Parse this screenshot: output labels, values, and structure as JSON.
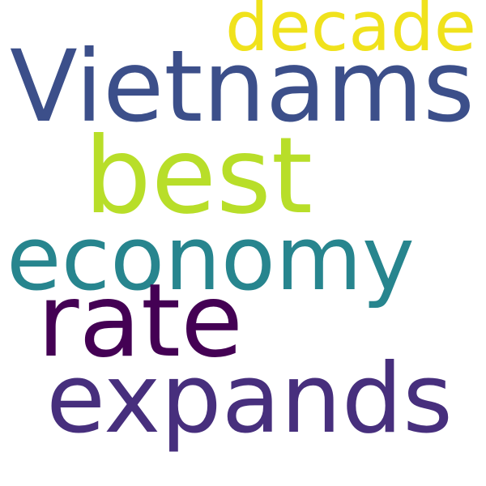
{
  "words": [
    {
      "text": "decade",
      "color": "#f0e21c"
    },
    {
      "text": "Vietnams",
      "color": "#3c4f8a"
    },
    {
      "text": "best",
      "color": "#b8de29"
    },
    {
      "text": "economy",
      "color": "#27858e"
    },
    {
      "text": "rate",
      "color": "#440154"
    },
    {
      "text": "expands",
      "color": "#472f7d"
    }
  ]
}
